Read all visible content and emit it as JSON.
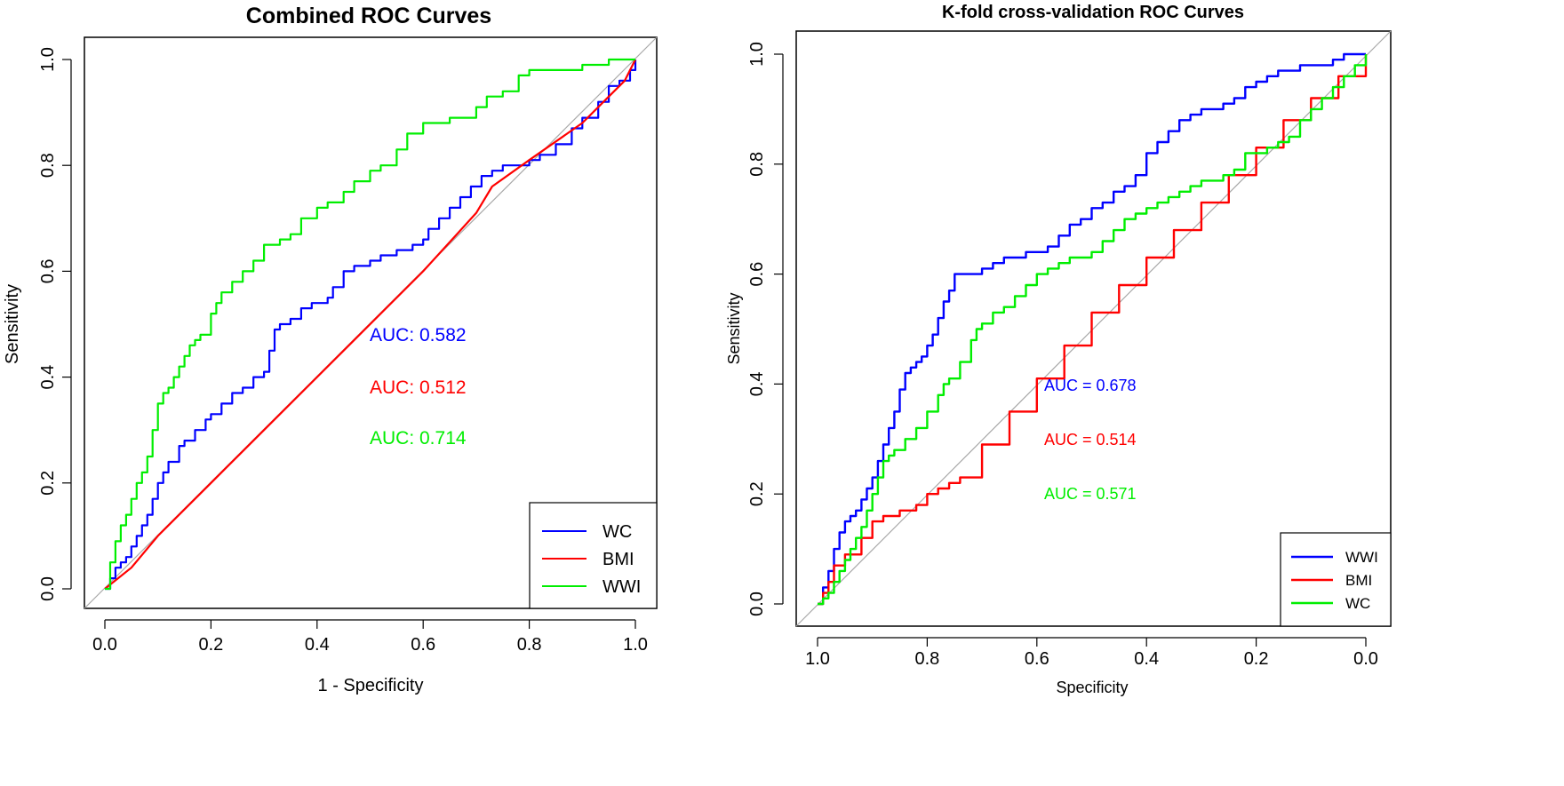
{
  "chart_data": [
    {
      "type": "line",
      "title": "Combined ROC Curves",
      "xlabel": "1 - Specificity",
      "ylabel": "Sensitivity",
      "xlim": [
        0,
        1
      ],
      "ylim": [
        0,
        1
      ],
      "x_reversed": false,
      "x_ticks": [
        "0.0",
        "0.2",
        "0.4",
        "0.6",
        "0.8",
        "1.0"
      ],
      "y_ticks": [
        "0.0",
        "0.2",
        "0.4",
        "0.6",
        "0.8",
        "1.0"
      ],
      "diagonal": true,
      "legend_position": "bottom-right",
      "series": [
        {
          "name": "WC",
          "color": "#0000ff",
          "auc_label": "AUC: 0.582",
          "x": [
            0.0,
            0.01,
            0.02,
            0.03,
            0.04,
            0.05,
            0.06,
            0.07,
            0.08,
            0.09,
            0.1,
            0.11,
            0.12,
            0.14,
            0.15,
            0.17,
            0.19,
            0.2,
            0.22,
            0.24,
            0.26,
            0.28,
            0.3,
            0.31,
            0.32,
            0.33,
            0.35,
            0.37,
            0.39,
            0.4,
            0.42,
            0.43,
            0.45,
            0.47,
            0.5,
            0.52,
            0.55,
            0.58,
            0.6,
            0.61,
            0.63,
            0.65,
            0.67,
            0.69,
            0.71,
            0.73,
            0.75,
            0.8,
            0.82,
            0.85,
            0.88,
            0.9,
            0.93,
            0.95,
            0.97,
            0.99,
            1.0
          ],
          "y": [
            0.0,
            0.02,
            0.04,
            0.05,
            0.06,
            0.08,
            0.1,
            0.12,
            0.14,
            0.17,
            0.2,
            0.22,
            0.24,
            0.27,
            0.28,
            0.3,
            0.32,
            0.33,
            0.35,
            0.37,
            0.38,
            0.4,
            0.41,
            0.45,
            0.49,
            0.5,
            0.51,
            0.53,
            0.54,
            0.54,
            0.55,
            0.57,
            0.6,
            0.61,
            0.62,
            0.63,
            0.64,
            0.65,
            0.66,
            0.68,
            0.7,
            0.72,
            0.74,
            0.76,
            0.78,
            0.79,
            0.8,
            0.81,
            0.82,
            0.84,
            0.87,
            0.89,
            0.92,
            0.95,
            0.96,
            0.98,
            1.0
          ]
        },
        {
          "name": "BMI",
          "color": "#ff0000",
          "auc_label": "AUC: 0.512",
          "x": [
            0.0,
            0.05,
            0.1,
            0.2,
            0.3,
            0.4,
            0.5,
            0.6,
            0.7,
            0.73,
            0.8,
            0.9,
            0.95,
            0.98,
            1.0
          ],
          "y": [
            0.0,
            0.04,
            0.1,
            0.2,
            0.3,
            0.4,
            0.5,
            0.6,
            0.71,
            0.76,
            0.81,
            0.88,
            0.93,
            0.96,
            1.0
          ],
          "smooth_line": true
        },
        {
          "name": "WWI",
          "color": "#00ee00",
          "auc_label": "AUC: 0.714",
          "x": [
            0.0,
            0.01,
            0.02,
            0.03,
            0.04,
            0.05,
            0.06,
            0.07,
            0.08,
            0.09,
            0.1,
            0.11,
            0.12,
            0.13,
            0.14,
            0.15,
            0.16,
            0.17,
            0.18,
            0.2,
            0.21,
            0.22,
            0.24,
            0.26,
            0.28,
            0.3,
            0.33,
            0.35,
            0.37,
            0.4,
            0.42,
            0.45,
            0.47,
            0.5,
            0.52,
            0.55,
            0.57,
            0.6,
            0.62,
            0.65,
            0.68,
            0.7,
            0.72,
            0.75,
            0.78,
            0.8,
            0.85,
            0.9,
            0.95,
            1.0
          ],
          "y": [
            0.0,
            0.05,
            0.09,
            0.12,
            0.14,
            0.17,
            0.2,
            0.22,
            0.25,
            0.3,
            0.35,
            0.37,
            0.38,
            0.4,
            0.42,
            0.44,
            0.46,
            0.47,
            0.48,
            0.52,
            0.54,
            0.56,
            0.58,
            0.6,
            0.62,
            0.65,
            0.66,
            0.67,
            0.7,
            0.72,
            0.73,
            0.75,
            0.77,
            0.79,
            0.8,
            0.83,
            0.86,
            0.88,
            0.88,
            0.89,
            0.89,
            0.91,
            0.93,
            0.94,
            0.97,
            0.98,
            0.98,
            0.99,
            1.0,
            1.0
          ]
        }
      ]
    },
    {
      "type": "line",
      "title": "K-fold cross-validation ROC Curves",
      "xlabel": "Specificity",
      "ylabel": "Sensitivity",
      "xlim": [
        1,
        0
      ],
      "ylim": [
        0,
        1
      ],
      "x_reversed": true,
      "x_ticks": [
        "1.0",
        "0.8",
        "0.6",
        "0.4",
        "0.2",
        "0.0"
      ],
      "y_ticks": [
        "0.0",
        "0.2",
        "0.4",
        "0.6",
        "0.8",
        "1.0"
      ],
      "diagonal": true,
      "legend_position": "bottom-right",
      "series": [
        {
          "name": "WWI",
          "color": "#0000ff",
          "auc_label": "AUC = 0.678",
          "x": [
            1.0,
            0.99,
            0.98,
            0.97,
            0.96,
            0.95,
            0.94,
            0.93,
            0.92,
            0.91,
            0.9,
            0.89,
            0.88,
            0.87,
            0.86,
            0.85,
            0.84,
            0.83,
            0.82,
            0.81,
            0.8,
            0.79,
            0.78,
            0.77,
            0.76,
            0.75,
            0.74,
            0.72,
            0.7,
            0.68,
            0.66,
            0.64,
            0.62,
            0.6,
            0.58,
            0.56,
            0.54,
            0.52,
            0.5,
            0.48,
            0.46,
            0.44,
            0.42,
            0.4,
            0.38,
            0.36,
            0.34,
            0.32,
            0.3,
            0.28,
            0.26,
            0.24,
            0.22,
            0.2,
            0.18,
            0.16,
            0.14,
            0.12,
            0.1,
            0.08,
            0.06,
            0.04,
            0.02,
            0.0
          ],
          "y": [
            0.0,
            0.03,
            0.06,
            0.1,
            0.13,
            0.15,
            0.16,
            0.17,
            0.19,
            0.21,
            0.23,
            0.26,
            0.29,
            0.32,
            0.35,
            0.39,
            0.42,
            0.43,
            0.44,
            0.45,
            0.47,
            0.49,
            0.52,
            0.55,
            0.57,
            0.6,
            0.6,
            0.6,
            0.61,
            0.62,
            0.63,
            0.63,
            0.64,
            0.64,
            0.65,
            0.67,
            0.69,
            0.7,
            0.72,
            0.73,
            0.75,
            0.76,
            0.78,
            0.82,
            0.84,
            0.86,
            0.88,
            0.89,
            0.9,
            0.9,
            0.91,
            0.92,
            0.94,
            0.95,
            0.96,
            0.97,
            0.97,
            0.98,
            0.98,
            0.98,
            0.99,
            1.0,
            1.0,
            1.0
          ]
        },
        {
          "name": "BMI",
          "color": "#ff0000",
          "auc_label": "AUC = 0.514",
          "x": [
            1.0,
            0.99,
            0.98,
            0.97,
            0.95,
            0.92,
            0.9,
            0.88,
            0.85,
            0.82,
            0.8,
            0.78,
            0.76,
            0.74,
            0.7,
            0.65,
            0.6,
            0.55,
            0.5,
            0.45,
            0.4,
            0.35,
            0.3,
            0.25,
            0.2,
            0.15,
            0.1,
            0.05,
            0.0
          ],
          "y": [
            0.0,
            0.02,
            0.04,
            0.07,
            0.09,
            0.12,
            0.15,
            0.16,
            0.17,
            0.18,
            0.2,
            0.21,
            0.22,
            0.23,
            0.29,
            0.35,
            0.41,
            0.47,
            0.53,
            0.58,
            0.63,
            0.68,
            0.73,
            0.78,
            0.83,
            0.88,
            0.92,
            0.96,
            1.0
          ]
        },
        {
          "name": "WC",
          "color": "#00ee00",
          "auc_label": "AUC = 0.571",
          "x": [
            1.0,
            0.99,
            0.98,
            0.97,
            0.96,
            0.95,
            0.94,
            0.93,
            0.92,
            0.91,
            0.9,
            0.89,
            0.88,
            0.87,
            0.86,
            0.84,
            0.82,
            0.8,
            0.78,
            0.77,
            0.76,
            0.74,
            0.72,
            0.71,
            0.7,
            0.68,
            0.66,
            0.64,
            0.62,
            0.6,
            0.58,
            0.56,
            0.54,
            0.52,
            0.5,
            0.48,
            0.46,
            0.44,
            0.42,
            0.4,
            0.38,
            0.36,
            0.34,
            0.32,
            0.3,
            0.28,
            0.26,
            0.24,
            0.22,
            0.2,
            0.18,
            0.16,
            0.14,
            0.12,
            0.1,
            0.08,
            0.06,
            0.04,
            0.02,
            0.0
          ],
          "y": [
            0.0,
            0.01,
            0.02,
            0.04,
            0.06,
            0.08,
            0.1,
            0.12,
            0.14,
            0.17,
            0.2,
            0.23,
            0.26,
            0.27,
            0.28,
            0.3,
            0.32,
            0.35,
            0.38,
            0.4,
            0.41,
            0.44,
            0.48,
            0.5,
            0.51,
            0.53,
            0.54,
            0.56,
            0.58,
            0.6,
            0.61,
            0.62,
            0.63,
            0.63,
            0.64,
            0.66,
            0.68,
            0.7,
            0.71,
            0.72,
            0.73,
            0.74,
            0.75,
            0.76,
            0.77,
            0.77,
            0.78,
            0.79,
            0.82,
            0.82,
            0.83,
            0.84,
            0.85,
            0.88,
            0.9,
            0.92,
            0.94,
            0.96,
            0.98,
            1.0
          ]
        }
      ]
    }
  ]
}
